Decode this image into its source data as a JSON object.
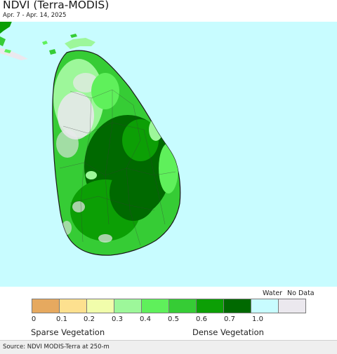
{
  "header": {
    "title": "NDVI (Terra-MODIS)",
    "date_range": "Apr. 7 - Apr. 14, 2025"
  },
  "legend": {
    "water_label": "Water",
    "nodata_label": "No Data",
    "ticks": [
      "0",
      "0.1",
      "0.2",
      "0.3",
      "0.4",
      "0.5",
      "0.6",
      "0.7",
      "1.0"
    ],
    "swatch_colors": [
      "#e6a95f",
      "#fde08f",
      "#f1fdab",
      "#9df79a",
      "#5ff05b",
      "#36cc35",
      "#0c9f05",
      "#006900",
      "#c8fcff",
      "#ebe8ee"
    ],
    "sparse_label": "Sparse Vegetation",
    "dense_label": "Dense Vegetation"
  },
  "footer": {
    "source": "Source: NDVI MODIS-Terra at 250-m"
  }
}
